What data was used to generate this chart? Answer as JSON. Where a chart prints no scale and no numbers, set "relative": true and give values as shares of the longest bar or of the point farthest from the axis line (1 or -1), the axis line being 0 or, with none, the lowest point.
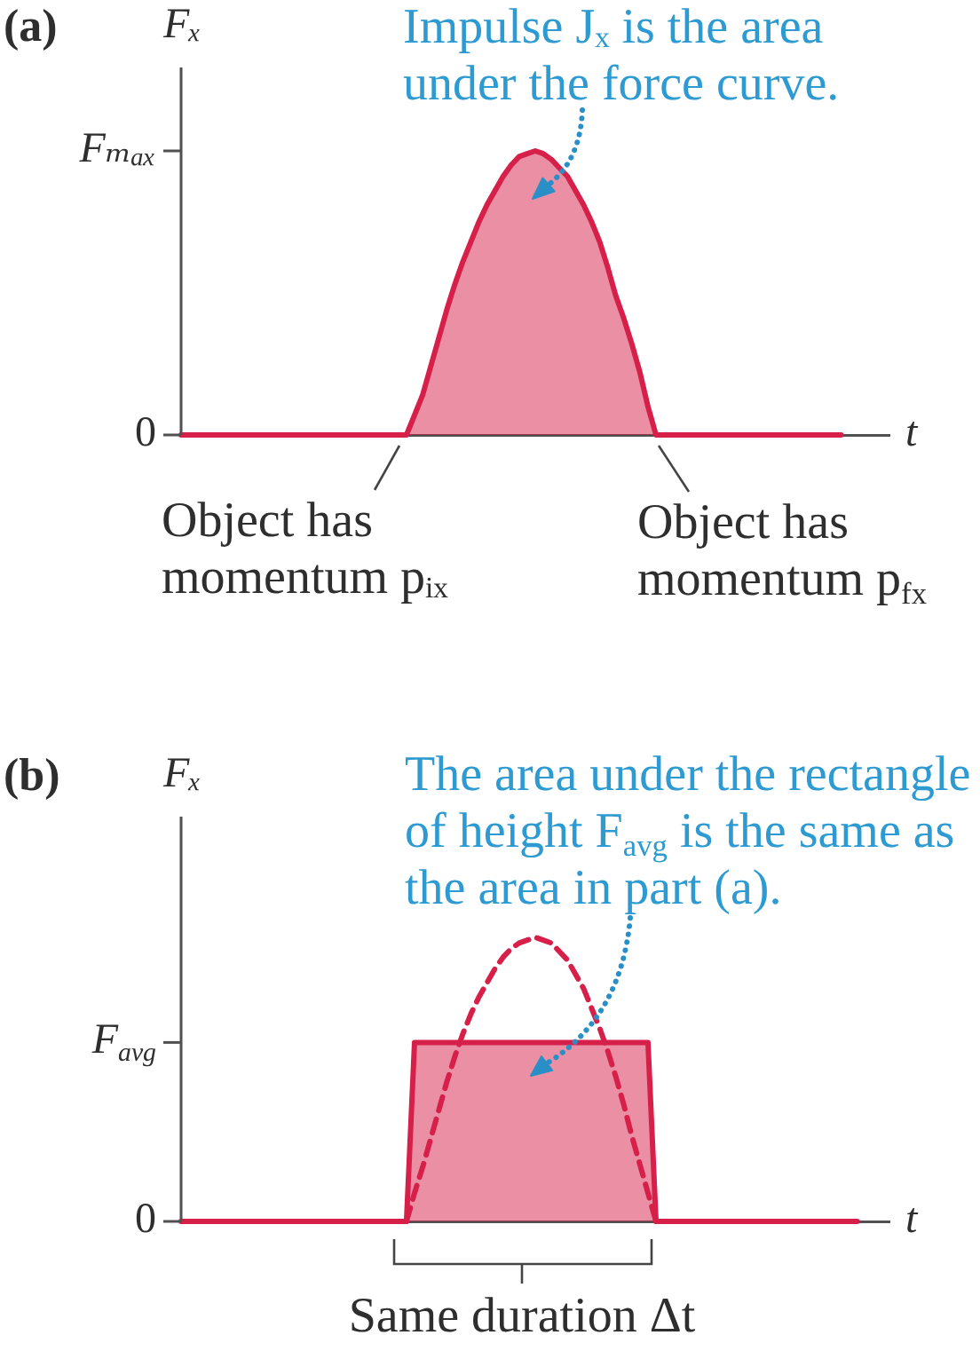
{
  "chart_data": [
    {
      "type": "area",
      "title": "(a)",
      "ylabel": "Fₓ",
      "xlabel": "t",
      "relative": true,
      "annotations": [
        "Impulse Jₓ is the area\nunder the force curve.",
        "Object has\nmomentum pᵢₓ",
        "Object has\nmomentum p$_{fx}$",
        "Fₘₐₓ",
        "0"
      ],
      "categories": [
        null,
        null,
        null,
        null,
        null,
        null,
        null,
        null,
        null,
        null,
        null,
        null,
        null,
        null,
        null,
        null,
        null,
        null,
        null,
        null,
        null,
        null,
        null,
        null,
        null,
        null,
        null,
        null,
        null,
        null,
        null,
        null,
        null,
        null,
        null,
        null,
        null,
        null,
        null,
        null,
        null,
        null,
        null,
        null,
        null,
        null,
        null,
        null,
        null,
        null,
        null,
        null,
        null,
        null,
        null,
        null,
        null,
        null,
        null,
        null,
        null,
        null,
        null,
        null,
        null,
        null,
        null,
        null,
        null,
        null,
        null,
        null,
        null,
        null,
        null,
        null,
        null,
        null,
        null,
        null,
        null,
        null,
        null,
        null,
        null,
        null,
        null,
        null,
        null
      ],
      "series": [
        {
          "color": "#d6204a",
          "values": [
            0,
            0,
            0,
            0,
            0,
            0,
            0,
            0,
            0,
            0,
            0,
            0,
            0,
            0,
            0,
            0,
            0,
            0,
            0,
            0,
            0,
            0,
            0,
            0,
            0,
            0,
            0,
            0,
            0,
            0.07,
            0.14,
            0.24,
            0.34,
            0.44,
            0.53,
            0.61,
            0.68,
            0.75,
            0.81,
            0.86,
            0.91,
            0.95,
            0.98,
            0.99,
            1,
            0.99,
            0.97,
            0.94,
            0.91,
            0.86,
            0.81,
            0.75,
            0.68,
            0.59,
            0.49,
            0.41,
            0.32,
            0.22,
            0.1,
            0,
            0,
            0,
            0,
            0,
            0,
            0,
            0,
            0,
            0,
            0,
            0,
            0,
            0,
            0,
            0,
            0,
            0,
            0,
            0,
            0,
            0,
            0,
            0,
            null,
            null,
            null,
            null,
            null,
            null
          ]
        }
      ]
    },
    {
      "type": "area",
      "title": "(b)",
      "ylabel": "Fₓ",
      "xlabel": "t",
      "relative": true,
      "annotations": [
        "The area under the rectangle\nof height F$_{avg}$ is the same as\nthe area in part (a).",
        "Same duration Δt",
        "F$_{avg}$",
        "0"
      ],
      "categories": [
        null,
        null,
        null,
        null,
        null,
        null,
        null,
        null,
        null,
        null,
        null,
        null,
        null,
        null,
        null,
        null,
        null,
        null,
        null,
        null,
        null,
        null,
        null,
        null,
        null,
        null,
        null,
        null,
        null,
        null,
        null,
        null,
        null,
        null,
        null,
        null,
        null,
        null,
        null,
        null,
        null,
        null,
        null,
        null,
        null,
        null,
        null,
        null,
        null,
        null,
        null,
        null,
        null,
        null,
        null,
        null,
        null,
        null,
        null,
        null,
        null,
        null,
        null,
        null,
        null,
        null,
        null,
        null,
        null,
        null,
        null,
        null,
        null,
        null,
        null,
        null,
        null,
        null,
        null,
        null,
        null,
        null,
        null,
        null,
        null,
        null,
        null,
        null,
        null
      ],
      "series": [
        {
          "color": "#d6204a",
          "values": [
            0,
            0,
            0,
            0,
            0,
            0,
            0,
            0,
            0,
            0,
            0,
            0,
            0,
            0,
            0,
            0,
            0,
            0,
            0,
            0,
            0,
            0,
            0,
            0,
            0,
            0,
            0,
            0,
            0,
            0.63,
            0.63,
            0.63,
            0.63,
            0.63,
            0.63,
            0.63,
            0.63,
            0.63,
            0.63,
            0.63,
            0.63,
            0.63,
            0.63,
            0.63,
            0.63,
            0.63,
            0.63,
            0.63,
            0.63,
            0.63,
            0.63,
            0.63,
            0.63,
            0.63,
            0.63,
            0.63,
            0.63,
            0.63,
            0.63,
            0,
            0,
            0,
            0,
            0,
            0,
            0,
            0,
            0,
            0,
            0,
            0,
            0,
            0,
            0,
            0,
            0,
            0,
            0,
            0,
            0,
            0,
            0,
            0,
            0,
            0,
            null,
            null,
            null,
            null
          ]
        },
        {
          "type": "line",
          "color": "#d6204a",
          "line_style": "dashed",
          "values": [
            null,
            null,
            null,
            null,
            null,
            null,
            null,
            null,
            null,
            null,
            null,
            null,
            null,
            null,
            null,
            null,
            null,
            null,
            null,
            null,
            null,
            null,
            null,
            null,
            null,
            null,
            null,
            null,
            0,
            0.1,
            0.19,
            0.29,
            0.39,
            0.49,
            0.58,
            0.66,
            0.73,
            0.79,
            0.84,
            0.89,
            0.93,
            0.96,
            0.98,
            0.99,
            1,
            0.99,
            0.98,
            0.95,
            0.92,
            0.87,
            0.82,
            0.75,
            0.68,
            0.6,
            0.51,
            0.41,
            0.3,
            0.2,
            0.1,
            0,
            null,
            null,
            null,
            null,
            null,
            null,
            null,
            null,
            null,
            null,
            null,
            null,
            null,
            null,
            null,
            null,
            null,
            null,
            null,
            null,
            null,
            null,
            null,
            null,
            null,
            null,
            null,
            null,
            null
          ]
        }
      ]
    }
  ]
}
